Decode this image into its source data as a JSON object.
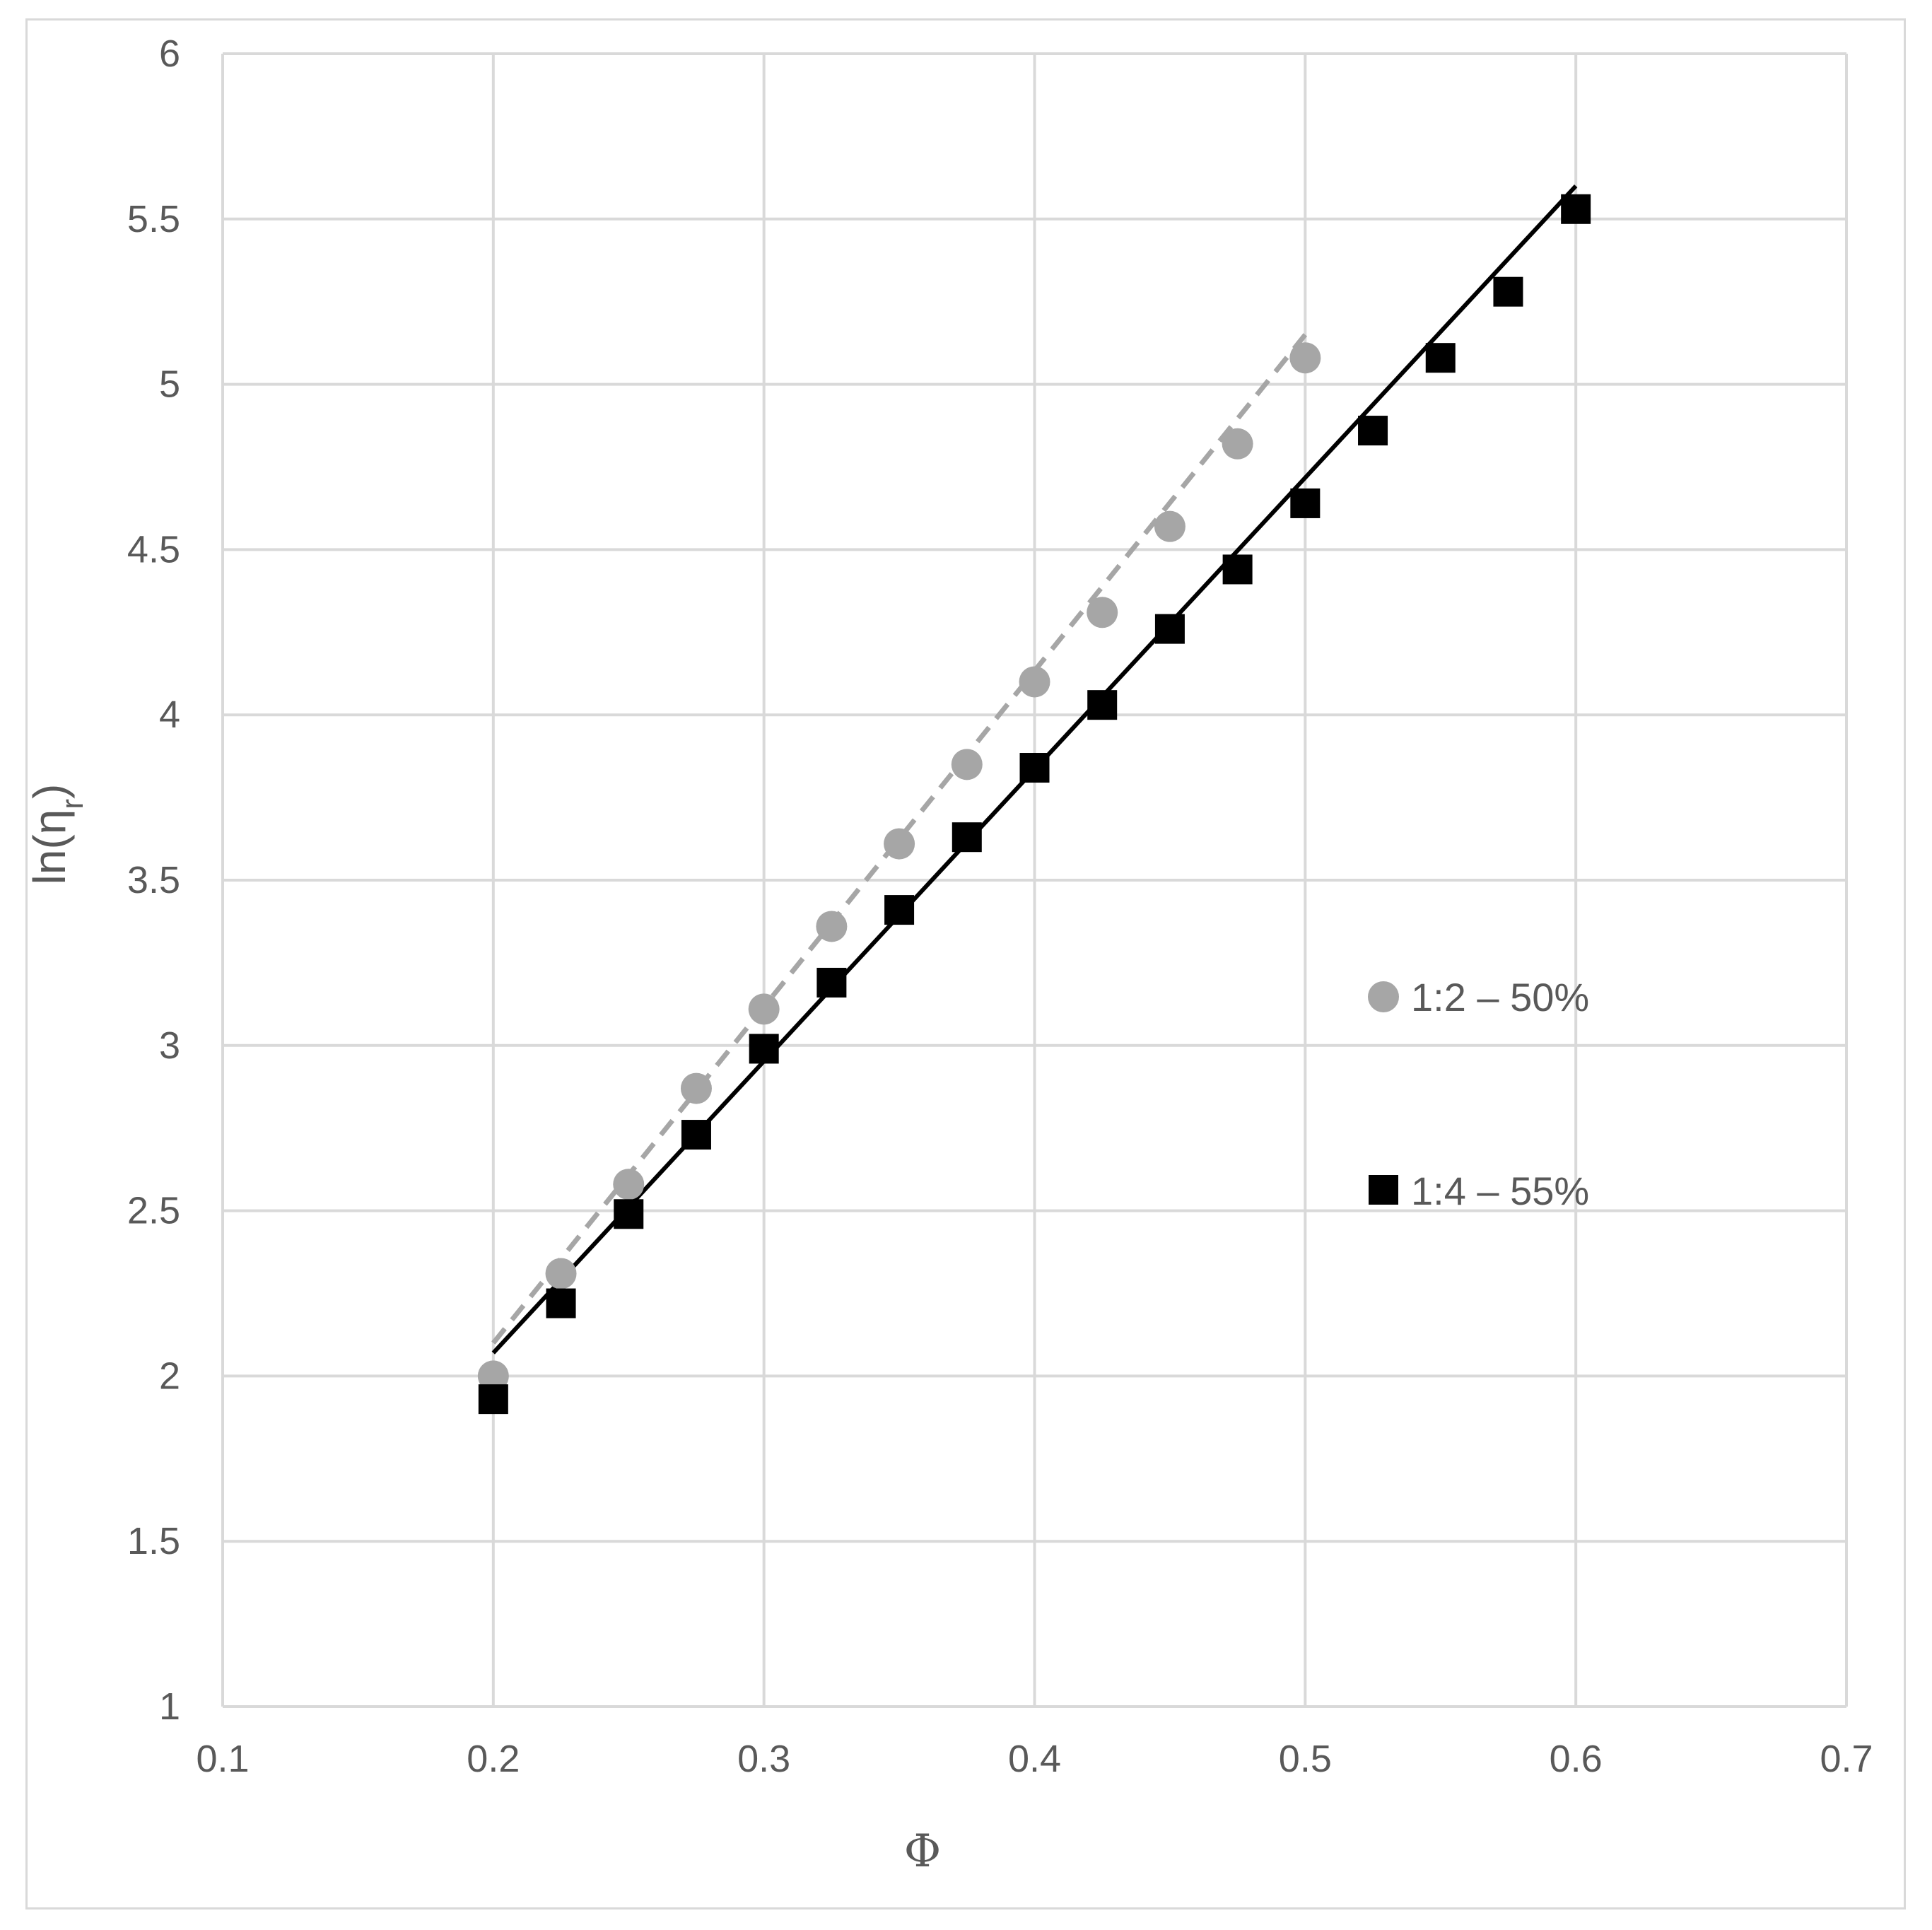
{
  "chart_data": {
    "type": "scatter",
    "title": "",
    "xlabel": "Φ",
    "ylabel": "ln(η",
    "ylabel_sub": "r",
    "ylabel_close": ")",
    "xlim": [
      0.1,
      0.7
    ],
    "ylim": [
      1,
      6
    ],
    "x_ticks": [
      0.1,
      0.2,
      0.3,
      0.4,
      0.5,
      0.6,
      0.7
    ],
    "x_tick_labels": [
      "0.1",
      "0.2",
      "0.3",
      "0.4",
      "0.5",
      "0.6",
      "0.7"
    ],
    "y_ticks": [
      1,
      1.5,
      2,
      2.5,
      3,
      3.5,
      4,
      4.5,
      5,
      5.5,
      6
    ],
    "y_tick_labels": [
      "1",
      "1.5",
      "2",
      "2.5",
      "3",
      "3.5",
      "4",
      "4.5",
      "5",
      "5.5",
      "6"
    ],
    "grid": true,
    "legend_position": "right",
    "series": [
      {
        "name": "1:2 – 50%",
        "marker": "circle",
        "color": "#a6a6a6",
        "line_style": "dashed",
        "x": [
          0.2,
          0.225,
          0.25,
          0.275,
          0.3,
          0.325,
          0.35,
          0.375,
          0.4,
          0.425,
          0.45,
          0.475,
          0.5
        ],
        "y": [
          2.0,
          2.31,
          2.58,
          2.87,
          3.11,
          3.36,
          3.61,
          3.85,
          4.1,
          4.31,
          4.57,
          4.82,
          5.08
        ],
        "trendline": {
          "x": [
            0.2,
            0.5
          ],
          "y": [
            2.1,
            5.15
          ]
        }
      },
      {
        "name": "1:4 – 55%",
        "marker": "square",
        "color": "#000000",
        "line_style": "solid",
        "x": [
          0.2,
          0.225,
          0.25,
          0.275,
          0.3,
          0.325,
          0.35,
          0.375,
          0.4,
          0.425,
          0.45,
          0.475,
          0.5,
          0.525,
          0.55,
          0.575,
          0.6
        ],
        "y": [
          1.93,
          2.22,
          2.49,
          2.73,
          2.99,
          3.19,
          3.41,
          3.63,
          3.84,
          4.03,
          4.26,
          4.44,
          4.64,
          4.86,
          5.08,
          5.28,
          5.53
        ],
        "trendline": {
          "x": [
            0.2,
            0.6
          ],
          "y": [
            2.07,
            5.6
          ]
        }
      }
    ]
  }
}
